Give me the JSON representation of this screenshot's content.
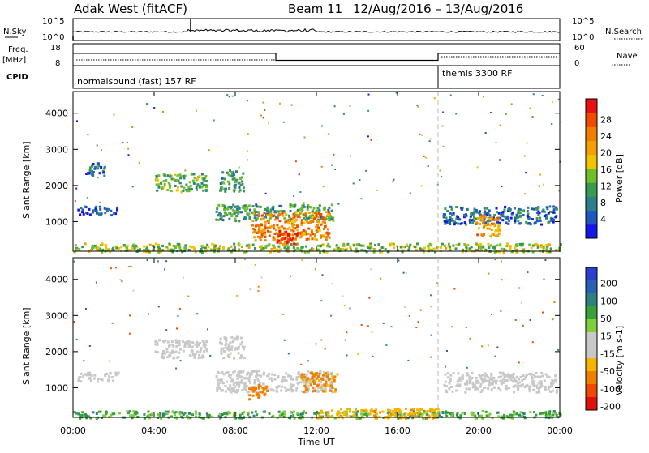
{
  "header": {
    "station": "Adak West (fitACF)",
    "beam": "Beam 11",
    "dates": "12/Aug/2016 – 13/Aug/2016"
  },
  "top_panels": {
    "nsky_label": "N.Sky",
    "nsky_ticks": [
      "10^5",
      "10^0"
    ],
    "nsky_right_ticks": [
      "10^5",
      "10^0"
    ],
    "nsearch_label": "N.Search",
    "freq_label_1": "Freq.",
    "freq_label_2": "[MHz]",
    "freq_ticks": [
      "18",
      "8"
    ],
    "nave_ticks": [
      "60",
      "0"
    ],
    "nave_label": "Nave",
    "cpid_label": "CPID",
    "cpid_segments": [
      {
        "label": "normalsound (fast) 157 RF",
        "start_hr": 0,
        "end_hr": 18
      },
      {
        "label": "themis 3300 RF",
        "start_hr": 18,
        "end_hr": 24
      }
    ],
    "freq_segments": [
      {
        "start_hr": 0,
        "end_hr": 10,
        "freq_mhz": 13.6
      },
      {
        "start_hr": 10,
        "end_hr": 18,
        "freq_mhz": 10.4
      },
      {
        "start_hr": 18,
        "end_hr": 24,
        "freq_mhz": 13.6
      }
    ]
  },
  "chart_data": [
    {
      "type": "heatmap",
      "name": "Power",
      "ylabel": "Slant Range [km]",
      "yticks": [
        "1000",
        "2000",
        "3000",
        "4000"
      ],
      "ylim": [
        180,
        4600
      ],
      "xlim": [
        0,
        24
      ],
      "colorbar_label": "Power [dB]",
      "colorbar_ticks": [
        "4",
        "8",
        "12",
        "16",
        "20",
        "24",
        "28"
      ],
      "colors": [
        "#1515e8",
        "#1f56c2",
        "#2c7e8b",
        "#3a9a52",
        "#6fbf2a",
        "#f2c400",
        "#f3a100",
        "#f07f00",
        "#ee4a00",
        "#e81010"
      ],
      "clusters": [
        {
          "t_start": 0.2,
          "t_end": 2.2,
          "r_low": 1200,
          "r_high": 1450,
          "value": 6
        },
        {
          "t_start": 0.6,
          "t_end": 1.6,
          "r_low": 2300,
          "r_high": 2650,
          "value": 8
        },
        {
          "t_start": 4.0,
          "t_end": 6.6,
          "r_low": 1850,
          "r_high": 2350,
          "value": 14
        },
        {
          "t_start": 7.2,
          "t_end": 8.4,
          "r_low": 1850,
          "r_high": 2450,
          "value": 12
        },
        {
          "t_start": 7.0,
          "t_end": 12.8,
          "r_low": 1050,
          "r_high": 1500,
          "value": 12
        },
        {
          "t_start": 8.8,
          "t_end": 12.6,
          "r_low": 500,
          "r_high": 1300,
          "value": 24
        },
        {
          "t_start": 10.0,
          "t_end": 11.0,
          "r_low": 400,
          "r_high": 800,
          "value": 28
        },
        {
          "t_start": 18.2,
          "t_end": 23.8,
          "r_low": 950,
          "r_high": 1450,
          "value": 8
        },
        {
          "t_start": 19.8,
          "t_end": 21.0,
          "r_low": 600,
          "r_high": 1200,
          "value": 22
        },
        {
          "t_start": 0.0,
          "t_end": 24.0,
          "r_low": 180,
          "r_high": 420,
          "value": 16
        }
      ]
    },
    {
      "type": "heatmap",
      "name": "Velocity",
      "ylabel": "Slant Range [km]",
      "yticks": [
        "1000",
        "2000",
        "3000",
        "4000"
      ],
      "ylim": [
        180,
        4600
      ],
      "xlim": [
        0,
        24
      ],
      "xlabel": "Time UT",
      "xticks": [
        "00:00",
        "04:00",
        "08:00",
        "12:00",
        "16:00",
        "20:00",
        "00:00"
      ],
      "colorbar_label": "Velocity [m s-1]",
      "colorbar_ticks": [
        "200",
        "100",
        "50",
        "15",
        "-15",
        "-50",
        "-100",
        "-200"
      ],
      "colors": [
        "#2a3fcf",
        "#2a5fb6",
        "#2f7f7f",
        "#3aa13a",
        "#7fcf3a",
        "#c8c8c8",
        "#c8c8c8",
        "#f5b400",
        "#f07f00",
        "#ee4a00",
        "#e01010"
      ],
      "clusters": [
        {
          "t_start": 0.2,
          "t_end": 2.2,
          "r_low": 1200,
          "r_high": 1450,
          "value": 0
        },
        {
          "t_start": 4.0,
          "t_end": 6.6,
          "r_low": 1850,
          "r_high": 2350,
          "value": 0
        },
        {
          "t_start": 7.2,
          "t_end": 8.4,
          "r_low": 1850,
          "r_high": 2450,
          "value": 0
        },
        {
          "t_start": 7.0,
          "t_end": 12.8,
          "r_low": 900,
          "r_high": 1500,
          "value": 0
        },
        {
          "t_start": 11.2,
          "t_end": 13.0,
          "r_low": 900,
          "r_high": 1450,
          "value": -45
        },
        {
          "t_start": 8.6,
          "t_end": 9.6,
          "r_low": 700,
          "r_high": 1100,
          "value": -60
        },
        {
          "t_start": 18.2,
          "t_end": 23.8,
          "r_low": 900,
          "r_high": 1450,
          "value": 0
        },
        {
          "t_start": 0.0,
          "t_end": 24.0,
          "r_low": 180,
          "r_high": 380,
          "value": 30
        },
        {
          "t_start": 12.0,
          "t_end": 18.0,
          "r_low": 180,
          "r_high": 450,
          "value": -30
        }
      ]
    }
  ]
}
